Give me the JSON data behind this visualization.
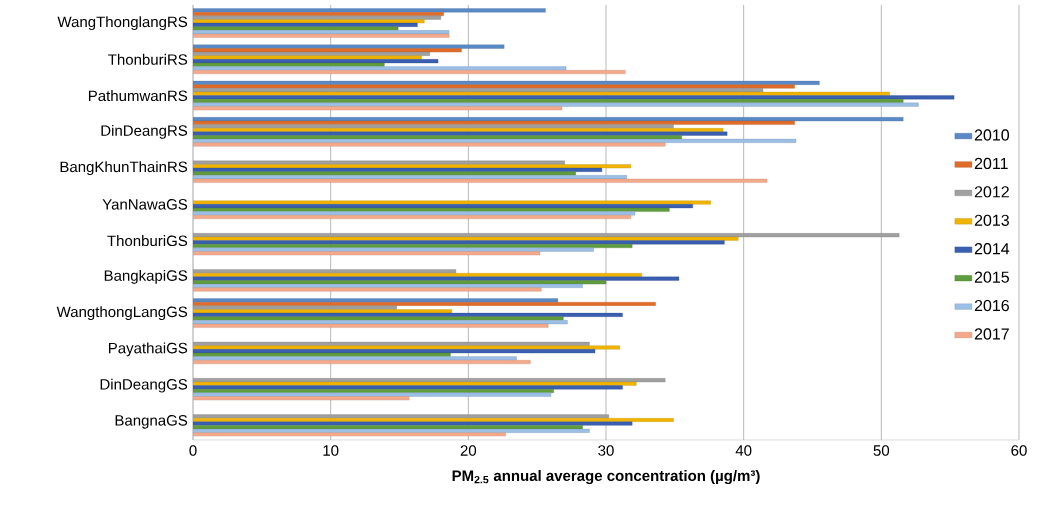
{
  "chart_data": {
    "type": "bar",
    "orientation": "horizontal",
    "xlabel": "PM$_{2.5}$ annual average concentration  (µg/m³)",
    "categories": [
      "WangThonglangRS",
      "ThonburiRS",
      "PathumwanRS",
      "DinDeangRS",
      "BangKhunThainRS",
      "YanNawaGS",
      "ThonburiGS",
      "BangkapiGS",
      "WangthongLangGS",
      "PayathaiGS",
      "DinDeangGS",
      "BangnaGS"
    ],
    "xlim": [
      0,
      60
    ],
    "xticks": [
      0,
      10,
      20,
      30,
      40,
      50,
      60
    ],
    "grid": "x",
    "legend": "right",
    "series": [
      {
        "name": "2010",
        "color": "#5a8ac6",
        "values": [
          25.6,
          22.6,
          45.5,
          51.6,
          null,
          null,
          null,
          null,
          26.5,
          null,
          null,
          null
        ]
      },
      {
        "name": "2011",
        "color": "#e06c2a",
        "values": [
          18.2,
          19.5,
          43.7,
          43.7,
          null,
          null,
          null,
          null,
          33.6,
          null,
          null,
          null
        ]
      },
      {
        "name": "2012",
        "color": "#a0a0a0",
        "values": [
          18.0,
          17.2,
          41.4,
          34.9,
          27.0,
          null,
          51.3,
          19.1,
          14.8,
          28.8,
          34.3,
          30.2
        ]
      },
      {
        "name": "2013",
        "color": "#f0b400",
        "values": [
          16.8,
          16.6,
          50.6,
          38.5,
          31.8,
          37.6,
          39.6,
          32.6,
          18.8,
          31.0,
          32.2,
          34.9
        ]
      },
      {
        "name": "2014",
        "color": "#3a5fb0",
        "values": [
          16.3,
          17.8,
          55.3,
          38.8,
          29.7,
          36.3,
          38.6,
          35.3,
          31.2,
          29.2,
          31.2,
          31.9
        ]
      },
      {
        "name": "2015",
        "color": "#5e9c3c",
        "values": [
          14.9,
          13.9,
          51.6,
          35.5,
          27.8,
          34.6,
          31.9,
          30.0,
          26.9,
          18.7,
          26.2,
          28.3
        ]
      },
      {
        "name": "2016",
        "color": "#9cbfe6",
        "values": [
          18.6,
          27.1,
          52.7,
          43.8,
          31.5,
          32.1,
          29.1,
          28.3,
          27.2,
          23.5,
          26.0,
          28.8
        ]
      },
      {
        "name": "2017",
        "color": "#f4a98b",
        "values": [
          18.6,
          31.4,
          26.8,
          34.3,
          41.7,
          31.8,
          25.2,
          25.3,
          25.8,
          24.5,
          15.7,
          22.7
        ]
      }
    ]
  }
}
